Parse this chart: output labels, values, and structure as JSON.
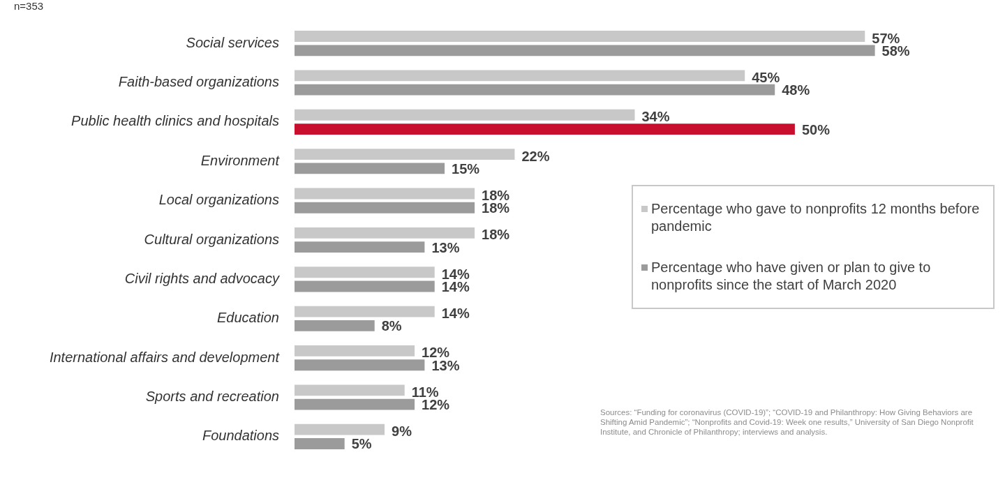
{
  "chart_data": {
    "type": "bar",
    "orientation": "horizontal",
    "subtitle": "n=353",
    "categories": [
      "Social services",
      "Faith-based organizations",
      "Public health clinics and hospitals",
      "Environment",
      "Local organizations",
      "Cultural organizations",
      "Civil rights and advocacy",
      "Education",
      "International affairs and development",
      "Sports and recreation",
      "Foundations"
    ],
    "series": [
      {
        "name": "Percentage who gave to nonprofits 12 months before pandemic",
        "color": "#c8c8c8",
        "values": [
          57,
          45,
          34,
          22,
          18,
          18,
          14,
          14,
          12,
          11,
          9
        ],
        "value_labels": [
          "57%",
          "45%",
          "34%",
          "22%",
          "18%",
          "18%",
          "14%",
          "14%",
          "12%",
          "11%",
          "9%"
        ]
      },
      {
        "name": "Percentage who have given or plan to give to nonprofits since the start of March 2020",
        "color": "#9b9b9b",
        "colors": [
          "#9b9b9b",
          "#9b9b9b",
          "#c8102e",
          "#9b9b9b",
          "#9b9b9b",
          "#9b9b9b",
          "#9b9b9b",
          "#9b9b9b",
          "#9b9b9b",
          "#9b9b9b",
          "#9b9b9b"
        ],
        "values": [
          58,
          48,
          50,
          15,
          18,
          13,
          14,
          8,
          13,
          12,
          5
        ],
        "value_labels": [
          "58%",
          "48%",
          "50%",
          "15%",
          "18%",
          "13%",
          "14%",
          "8%",
          "13%",
          "12%",
          "5%"
        ]
      }
    ],
    "legend": "right",
    "tick_labels": "y",
    "annotations": [
      "Sources: “Funding for coronavirus (COVID-19)”; “COVID-19 and Philanthropy: How Giving Behaviors are Shifting Amid Pandemic”; “Nonprofits and Covid-19: Week one results,” University of San Diego Nonprofit Institute, and Chronicle of Philanthropy; interviews and analysis."
    ]
  }
}
